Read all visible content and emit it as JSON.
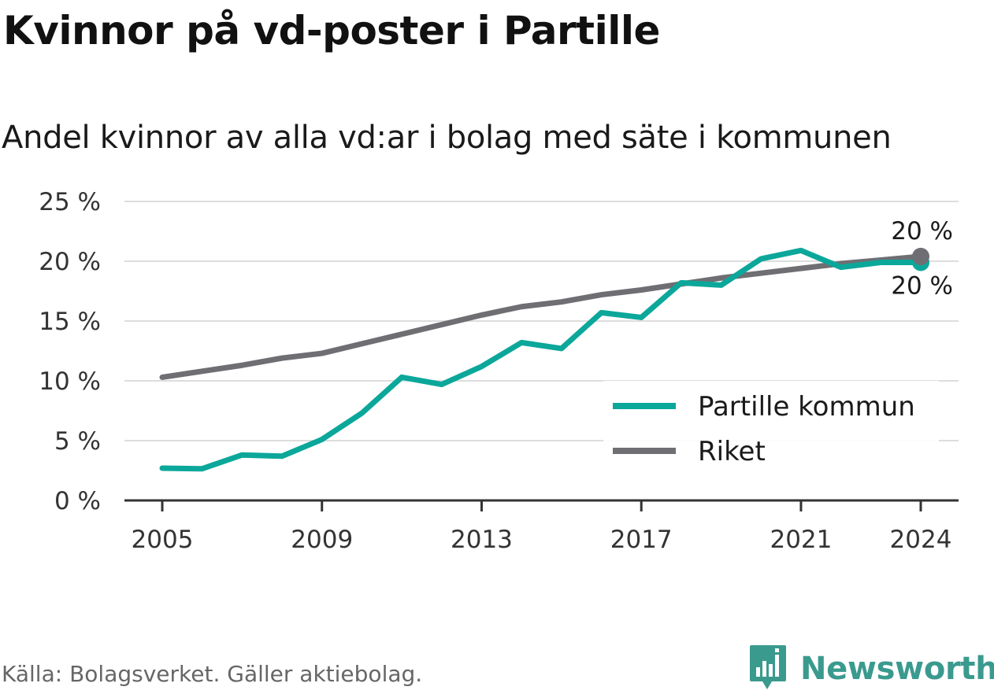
{
  "title": "Kvinnor på vd-poster i Partille",
  "subtitle": "Andel kvinnor av alla vd:ar i bolag med säte i kommunen",
  "source": "Källa: Bolagsverket. Gäller aktiebolag.",
  "brand": {
    "name": "Newsworthy",
    "icon": "newsworthy-logo-icon",
    "color": "#3a9a8e"
  },
  "chart_data": {
    "type": "line",
    "x": [
      2005,
      2006,
      2007,
      2008,
      2009,
      2010,
      2011,
      2012,
      2013,
      2014,
      2015,
      2016,
      2017,
      2018,
      2019,
      2020,
      2021,
      2022,
      2023,
      2024
    ],
    "x_ticks": [
      "2005",
      "2009",
      "2013",
      "2017",
      "2021",
      "2024"
    ],
    "y_ticks": [
      "0 %",
      "5 %",
      "10 %",
      "15 %",
      "20 %",
      "25 %"
    ],
    "ylim": [
      0,
      25
    ],
    "grid": true,
    "legend_position": "bottom-right",
    "series": [
      {
        "name": "Partille kommun",
        "color": "#0ba79a",
        "values": [
          2.7,
          2.65,
          3.8,
          3.7,
          5.1,
          7.3,
          10.3,
          9.7,
          11.2,
          13.2,
          12.7,
          15.7,
          15.3,
          18.2,
          18.0,
          20.2,
          20.9,
          19.5,
          19.9,
          19.9
        ],
        "end_label": "20 %"
      },
      {
        "name": "Riket",
        "color": "#6f6e73",
        "values": [
          10.3,
          10.8,
          11.3,
          11.9,
          12.3,
          13.1,
          13.9,
          14.7,
          15.5,
          16.2,
          16.6,
          17.2,
          17.6,
          18.1,
          18.6,
          19.0,
          19.4,
          19.8,
          20.1,
          20.4
        ],
        "end_label": "20 %"
      }
    ]
  }
}
